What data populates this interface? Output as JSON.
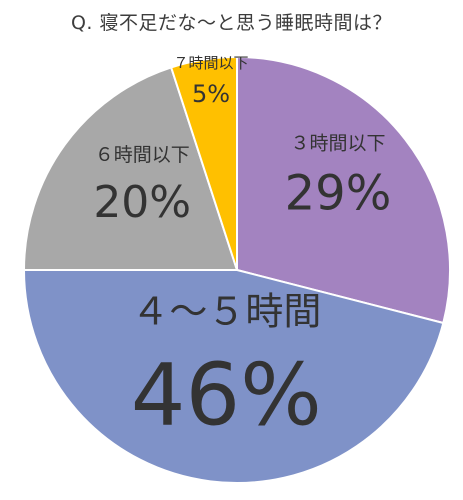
{
  "chart_data": {
    "type": "pie",
    "title": "Q. 寝不足だな〜と思う睡眠時間は？",
    "start_angle_deg": 0,
    "direction": "clockwise",
    "slices": [
      {
        "label": "３時間以下",
        "value": 29,
        "value_text": "29%",
        "color": "#a383c0"
      },
      {
        "label": "４～５時間",
        "value": 46,
        "value_text": "46%",
        "color": "#7f92c8"
      },
      {
        "label": "６時間以下",
        "value": 20,
        "value_text": "20%",
        "color": "#a8a8a8"
      },
      {
        "label": "７時間以下",
        "value": 5,
        "value_text": "5%",
        "color": "#ffc000"
      }
    ]
  }
}
